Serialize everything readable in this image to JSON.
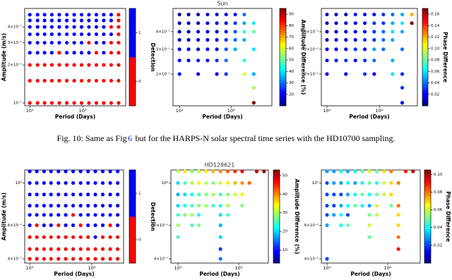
{
  "caption": {
    "prefix": "Fig. 10: Same as Fig",
    "ref": "6",
    "suffix": "but for the HARPS-N solar spectral time series with the HD10700 sampling."
  },
  "chart_data": [
    {
      "type": "scatter",
      "xlabel": "Period (Days)",
      "ylabel": "Amplitude (m/s)",
      "xscale": "log",
      "yscale": "log",
      "x": [
        10,
        14,
        19,
        26,
        36,
        50,
        69,
        95,
        131,
        181,
        250,
        345,
        476
      ],
      "y": [
        0.1,
        0.15,
        0.2,
        0.25,
        0.3,
        0.35,
        0.4,
        0.45,
        0.5
      ],
      "values": [
        [
          0,
          0,
          0,
          0,
          0,
          0,
          0,
          0,
          0,
          0,
          0,
          0,
          0
        ],
        [
          0,
          0,
          0,
          0,
          0,
          0,
          0,
          0,
          0,
          0,
          0,
          0,
          0
        ],
        [
          0,
          0,
          0,
          0,
          0,
          0,
          0,
          0,
          0,
          0,
          0,
          0,
          0
        ],
        [
          1,
          1,
          1,
          1,
          0,
          1,
          1,
          1,
          1,
          0,
          1,
          0,
          0
        ],
        [
          1,
          1,
          1,
          1,
          1,
          1,
          1,
          1,
          0,
          1,
          1,
          0,
          0
        ],
        [
          1,
          1,
          1,
          1,
          1,
          1,
          1,
          1,
          1,
          1,
          1,
          1,
          0
        ],
        [
          1,
          1,
          1,
          1,
          1,
          1,
          1,
          1,
          1,
          1,
          1,
          0,
          0
        ],
        [
          1,
          1,
          1,
          1,
          1,
          1,
          1,
          1,
          1,
          1,
          1,
          1,
          0
        ],
        [
          1,
          1,
          1,
          1,
          1,
          1,
          1,
          1,
          1,
          1,
          1,
          1,
          0
        ]
      ],
      "xlim": [
        8,
        650
      ],
      "ylim": [
        0.095,
        0.56
      ],
      "xticks": [
        {
          "value": 10,
          "label": "10¹"
        },
        {
          "value": 100,
          "label": "10²"
        }
      ],
      "yticks": [
        {
          "value": 0.1,
          "label": "10⁻¹"
        },
        {
          "value": 0.2,
          "label": "2×10⁻¹"
        },
        {
          "value": 0.3,
          "label": "3×10⁻¹"
        },
        {
          "value": 0.4,
          "label": "4×10⁻¹"
        }
      ],
      "colors": [
        "#ff0000",
        "#0000ff"
      ],
      "colorbar": {
        "label": "Detection",
        "lim": [
          -0.5,
          1.5
        ],
        "ticks": [
          0,
          1
        ]
      }
    },
    {
      "type": "scatter",
      "title": "Sun",
      "xlabel": "Period (Days)",
      "xscale": "log",
      "yscale": "log",
      "x": [
        10,
        15,
        23,
        35,
        53,
        80,
        120,
        180,
        275,
        420
      ],
      "y": [
        0.125,
        0.16,
        0.2,
        0.25,
        0.3,
        0.35,
        0.4,
        0.46,
        0.53
      ],
      "values": [
        [
          null,
          null,
          null,
          null,
          null,
          null,
          null,
          null,
          95,
          null
        ],
        [
          null,
          null,
          null,
          null,
          null,
          null,
          null,
          null,
          55,
          null
        ],
        [
          22,
          null,
          20,
          null,
          20,
          25,
          null,
          60,
          35,
          null
        ],
        [
          20,
          18,
          22,
          20,
          25,
          30,
          null,
          45,
          null,
          null
        ],
        [
          18,
          20,
          18,
          22,
          20,
          28,
          35,
          null,
          40,
          null
        ],
        [
          15,
          18,
          20,
          18,
          22,
          25,
          30,
          35,
          null,
          null
        ],
        [
          15,
          15,
          18,
          20,
          18,
          22,
          28,
          45,
          50,
          null
        ],
        [
          12,
          15,
          15,
          18,
          20,
          20,
          25,
          35,
          40,
          null
        ],
        [
          12,
          12,
          15,
          15,
          18,
          20,
          22,
          30,
          null,
          null
        ]
      ],
      "xlim": [
        7.5,
        617
      ],
      "ylim": [
        0.119,
        0.585
      ],
      "xticks": [
        {
          "value": 10,
          "label": "10¹"
        },
        {
          "value": 100,
          "label": "10²"
        }
      ],
      "yticks": [
        {
          "value": 0.2,
          "label": "2×10⁻¹"
        },
        {
          "value": 0.3,
          "label": "3×10⁻¹"
        },
        {
          "value": 0.4,
          "label": "4×10⁻¹"
        }
      ],
      "colormap": "jet",
      "colorbar": {
        "label": "Amplitude Difference (%)",
        "lim": [
          10,
          95
        ],
        "ticks": [
          20,
          30,
          40,
          50,
          60,
          70,
          80,
          90
        ]
      }
    },
    {
      "type": "scatter",
      "xlabel": "Period (Days)",
      "xscale": "log",
      "yscale": "log",
      "x": [
        10,
        15,
        23,
        35,
        53,
        80,
        120,
        180,
        275,
        420
      ],
      "y": [
        0.125,
        0.16,
        0.2,
        0.25,
        0.3,
        0.35,
        0.4,
        0.46,
        0.53
      ],
      "values": [
        [
          null,
          null,
          null,
          null,
          null,
          null,
          null,
          null,
          0.02,
          null
        ],
        [
          null,
          null,
          null,
          null,
          null,
          null,
          null,
          null,
          0.03,
          null
        ],
        [
          0.02,
          null,
          0.02,
          null,
          0.03,
          0.02,
          null,
          0.06,
          0.03,
          null
        ],
        [
          0.02,
          0.02,
          0.03,
          0.02,
          0.03,
          0.04,
          null,
          0.05,
          null,
          null
        ],
        [
          0.02,
          0.02,
          0.02,
          0.03,
          0.02,
          0.05,
          0.04,
          null,
          0.04,
          null
        ],
        [
          0.01,
          0.02,
          0.02,
          0.02,
          0.03,
          0.03,
          0.04,
          0.05,
          null,
          null
        ],
        [
          0.01,
          0.01,
          0.02,
          0.02,
          0.02,
          0.03,
          0.04,
          0.06,
          0.05,
          null
        ],
        [
          0.01,
          0.01,
          0.02,
          0.02,
          0.02,
          0.03,
          0.03,
          0.05,
          0.06,
          0.17
        ],
        [
          0.01,
          0.01,
          0.01,
          0.02,
          0.02,
          0.02,
          0.03,
          0.04,
          0.05,
          0.12
        ]
      ],
      "xlim": [
        7.8,
        537
      ],
      "ylim": [
        0.119,
        0.585
      ],
      "xticks": [
        {
          "value": 10,
          "label": "10¹"
        },
        {
          "value": 100,
          "label": "10²"
        }
      ],
      "yticks": [
        {
          "value": 0.2,
          "label": "2×10⁻¹"
        },
        {
          "value": 0.3,
          "label": "3×10⁻¹"
        },
        {
          "value": 0.4,
          "label": "4×10⁻¹"
        }
      ],
      "colormap": "jet",
      "colorbar": {
        "label": "Phase Difference",
        "lim": [
          0,
          0.17
        ],
        "ticks": [
          0.02,
          0.04,
          0.06,
          0.08,
          {
            "value": 0.1,
            "label": "0.10"
          },
          0.12,
          0.14,
          0.16
        ]
      }
    },
    {
      "type": "scatter",
      "xlabel": "Period (Days)",
      "ylabel": "Amplitude (m/s)",
      "xscale": "log",
      "yscale": "log",
      "x": [
        10,
        13,
        17,
        22,
        29,
        38,
        50,
        66,
        87,
        114,
        150,
        198,
        261
      ],
      "y": [
        0.4,
        0.45,
        0.52,
        0.6,
        0.68,
        0.76,
        0.87,
        1,
        1.15
      ],
      "values": [
        [
          0,
          0,
          0,
          0,
          0,
          0,
          0,
          0,
          0,
          0,
          0,
          0,
          0
        ],
        [
          0,
          0,
          0,
          0,
          0,
          0,
          0,
          0,
          0,
          0,
          0,
          0,
          0
        ],
        [
          0,
          0,
          0,
          0,
          0,
          0,
          0,
          0,
          0,
          1,
          0,
          0,
          0
        ],
        [
          1,
          0,
          1,
          1,
          0,
          1,
          1,
          0,
          1,
          1,
          1,
          0,
          1
        ],
        [
          1,
          1,
          1,
          1,
          1,
          1,
          0,
          1,
          1,
          1,
          1,
          1,
          1
        ],
        [
          1,
          1,
          1,
          1,
          1,
          1,
          1,
          1,
          1,
          1,
          1,
          1,
          1
        ],
        [
          1,
          1,
          1,
          1,
          1,
          1,
          1,
          1,
          1,
          1,
          1,
          1,
          1
        ],
        [
          1,
          1,
          1,
          1,
          1,
          1,
          1,
          1,
          1,
          1,
          1,
          1,
          1
        ],
        [
          1,
          1,
          1,
          1,
          1,
          1,
          1,
          1,
          1,
          1,
          1,
          1,
          1
        ]
      ],
      "xlim": [
        8.3,
        325
      ],
      "ylim": [
        0.38,
        1.17
      ],
      "xticks": [
        {
          "value": 10,
          "label": "10¹"
        },
        {
          "value": 100,
          "label": "10²"
        }
      ],
      "yticks": [
        {
          "value": 0.4,
          "label": "4×10⁻¹"
        },
        {
          "value": 0.6,
          "label": "6×10⁻¹"
        },
        {
          "value": 1,
          "label": "10⁰"
        }
      ],
      "colors": [
        "#ff0000",
        "#0000ff"
      ],
      "colorbar": {
        "label": "Detection",
        "lim": [
          -0.5,
          1.5
        ],
        "ticks": [
          0,
          1
        ]
      }
    },
    {
      "type": "scatter",
      "title": "HD128621",
      "xlabel": "Period (Days)",
      "xscale": "log",
      "yscale": "log",
      "x": [
        10,
        13,
        17,
        22,
        29,
        38,
        50,
        66,
        87,
        114,
        150,
        198,
        261
      ],
      "y": [
        0.4,
        0.45,
        0.52,
        0.6,
        0.68,
        0.76,
        0.87,
        1,
        1.15
      ],
      "values": [
        [
          null,
          null,
          null,
          null,
          null,
          null,
          15,
          null,
          null,
          null,
          null,
          null,
          null
        ],
        [
          null,
          null,
          null,
          null,
          null,
          null,
          12,
          null,
          null,
          null,
          null,
          null,
          null
        ],
        [
          25,
          null,
          null,
          null,
          null,
          null,
          20,
          null,
          null,
          null,
          null,
          null,
          null
        ],
        [
          30,
          null,
          25,
          28,
          null,
          null,
          18,
          null,
          null,
          null,
          null,
          null,
          null
        ],
        [
          25,
          28,
          30,
          22,
          null,
          null,
          20,
          25,
          null,
          null,
          null,
          null,
          null
        ],
        [
          20,
          22,
          25,
          28,
          30,
          25,
          22,
          30,
          null,
          28,
          null,
          null,
          null
        ],
        [
          18,
          20,
          22,
          25,
          28,
          30,
          25,
          28,
          32,
          35,
          null,
          null,
          null
        ],
        [
          20,
          25,
          30,
          35,
          30,
          28,
          32,
          35,
          38,
          40,
          42,
          null,
          null
        ],
        [
          30,
          35,
          28,
          32,
          35,
          38,
          40,
          42,
          45,
          48,
          null,
          50,
          52
        ]
      ],
      "xlim": [
        7.65,
        308
      ],
      "ylim": [
        0.38,
        1.17
      ],
      "xticks": [
        {
          "value": 10,
          "label": "10¹"
        },
        {
          "value": 100,
          "label": "10²"
        }
      ],
      "yticks": [
        {
          "value": 0.4,
          "label": "4×10⁻¹"
        },
        {
          "value": 0.6,
          "label": "6×10⁻¹"
        },
        {
          "value": 1,
          "label": "10⁰"
        }
      ],
      "colormap": "jet",
      "colorbar": {
        "label": "Amplitude Difference (%)",
        "lim": [
          3,
          53
        ],
        "ticks": [
          10,
          20,
          30,
          40,
          50
        ]
      }
    },
    {
      "type": "scatter",
      "xlabel": "Period (Days)",
      "xscale": "log",
      "yscale": "log",
      "x": [
        10,
        13,
        17,
        22,
        29,
        38,
        50,
        66,
        87,
        114,
        150,
        198,
        261
      ],
      "y": [
        0.4,
        0.45,
        0.52,
        0.6,
        0.68,
        0.76,
        0.87,
        1,
        1.15
      ],
      "values": [
        [
          0.02,
          null,
          null,
          null,
          null,
          null,
          null,
          null,
          null,
          null,
          null,
          null,
          null
        ],
        [
          null,
          null,
          null,
          null,
          null,
          null,
          null,
          null,
          null,
          null,
          0.09,
          null,
          null
        ],
        [
          null,
          null,
          null,
          null,
          null,
          null,
          0.05,
          null,
          null,
          null,
          0.08,
          null,
          null
        ],
        [
          0.03,
          null,
          0.04,
          0.05,
          null,
          null,
          0.06,
          null,
          null,
          null,
          0.07,
          null,
          null
        ],
        [
          0.02,
          0.03,
          0.04,
          0.02,
          null,
          null,
          0.05,
          0.06,
          null,
          null,
          0.07,
          null,
          null
        ],
        [
          0.02,
          0.02,
          0.03,
          0.04,
          0.05,
          0.04,
          0.03,
          0.06,
          null,
          0.05,
          0.08,
          null,
          null
        ],
        [
          0.02,
          0.02,
          0.02,
          0.03,
          0.04,
          0.05,
          0.04,
          0.05,
          0.06,
          0.07,
          null,
          null,
          null
        ],
        [
          0.02,
          0.03,
          0.03,
          0.04,
          0.03,
          0.04,
          0.05,
          0.04,
          0.06,
          0.07,
          0.08,
          null,
          null
        ],
        [
          0.03,
          0.03,
          0.04,
          0.03,
          0.04,
          0.05,
          0.06,
          0.05,
          0.07,
          0.08,
          null,
          0.09,
          0.1
        ]
      ],
      "xlim": [
        8.07,
        343
      ],
      "ylim": [
        0.38,
        1.17
      ],
      "xticks": [
        {
          "value": 10,
          "label": "10¹"
        },
        {
          "value": 100,
          "label": "10²"
        }
      ],
      "yticks": [
        {
          "value": 0.4,
          "label": "4×10⁻¹"
        },
        {
          "value": 0.6,
          "label": "6×10⁻¹"
        },
        {
          "value": 1,
          "label": "10⁰"
        }
      ],
      "colormap": "jet",
      "colorbar": {
        "label": "Phase Difference",
        "lim": [
          0,
          0.105
        ],
        "ticks": [
          0.02,
          0.04,
          0.06,
          0.08,
          {
            "value": 0.1,
            "label": "0.10"
          }
        ]
      }
    }
  ]
}
